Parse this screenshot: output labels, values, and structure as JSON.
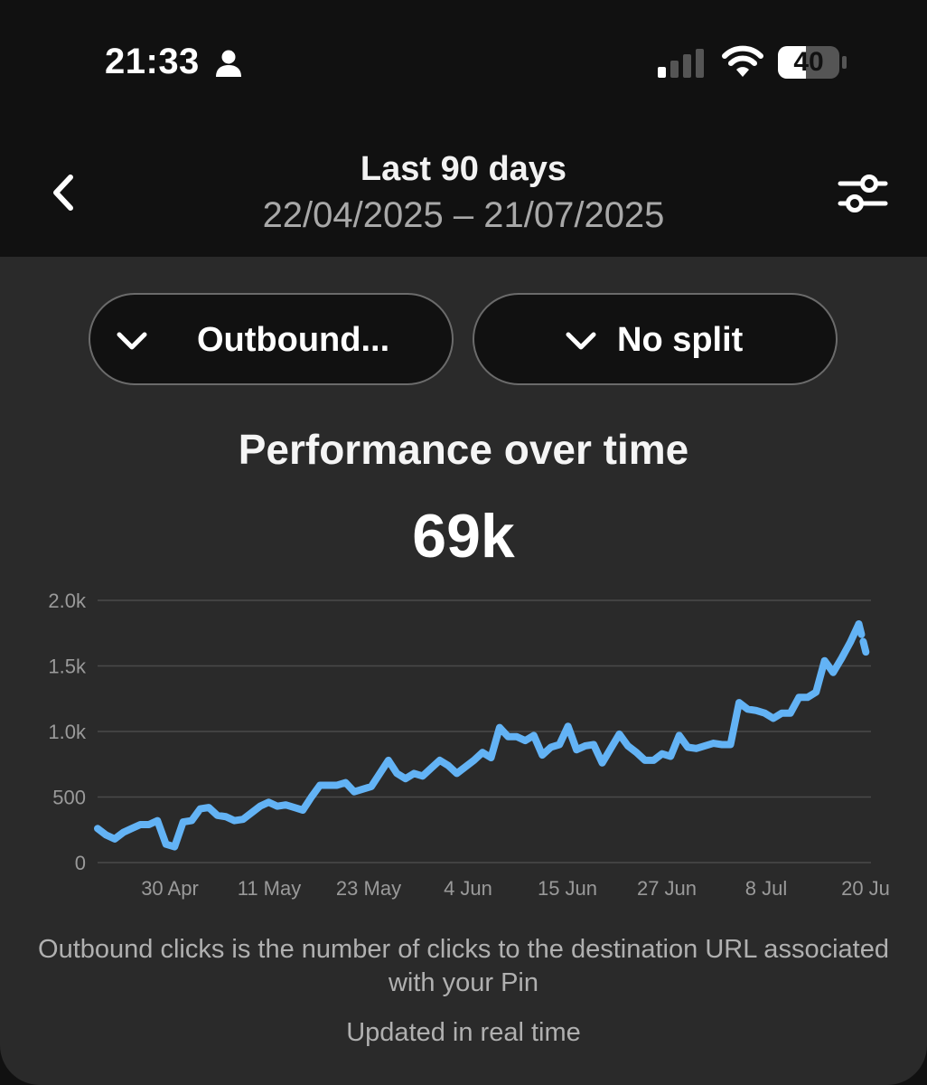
{
  "status_bar": {
    "time": "21:33",
    "battery_level": "40",
    "icons": [
      "person-icon",
      "signal-icon",
      "wifi-icon",
      "battery-icon"
    ]
  },
  "header": {
    "title": "Last 90 days",
    "subtitle": "22/04/2025 – 21/07/2025",
    "back_icon": "chevron-left-icon",
    "filter_icon": "sliders-icon"
  },
  "filters": {
    "metric_label": "Outbound...",
    "split_label": "No split"
  },
  "chart_heading": {
    "title": "Performance over time",
    "total": "69k"
  },
  "chart_data": {
    "type": "line",
    "x_labels": [
      "30 Apr",
      "11 May",
      "23 May",
      "4 Jun",
      "15 Jun",
      "27 Jun",
      "8 Jul",
      "20 Ju"
    ],
    "y_tick_labels": [
      "0",
      "500",
      "1.0k",
      "1.5k",
      "2.0k"
    ],
    "y_ticks": [
      0,
      500,
      1000,
      1500,
      2000
    ],
    "ylim": [
      0,
      2000
    ],
    "grid": true,
    "line_color": "#63b3f5",
    "series": [
      {
        "values": [
          260,
          210,
          180,
          230,
          260,
          290,
          290,
          320,
          140,
          120,
          310,
          320,
          410,
          420,
          360,
          350,
          320,
          330,
          380,
          430,
          460,
          430,
          440,
          420,
          400,
          500,
          590,
          590,
          590,
          610,
          540,
          560,
          580,
          680,
          780,
          680,
          640,
          680,
          660,
          720,
          780,
          740,
          680,
          730,
          780,
          840,
          800,
          1030,
          960,
          960,
          930,
          970,
          820,
          880,
          900,
          1040,
          860,
          890,
          900,
          760,
          870,
          980,
          890,
          840,
          780,
          780,
          830,
          810,
          970,
          880,
          870,
          890,
          910,
          900,
          900,
          1220,
          1170,
          1160,
          1140,
          1100,
          1140,
          1140,
          1260,
          1260,
          1300,
          1540,
          1450,
          1560,
          1680,
          1820,
          1560
        ]
      }
    ]
  },
  "footnote": "Outbound clicks is the number of clicks to the destination URL associated with your Pin",
  "updated_text": "Updated in real time"
}
